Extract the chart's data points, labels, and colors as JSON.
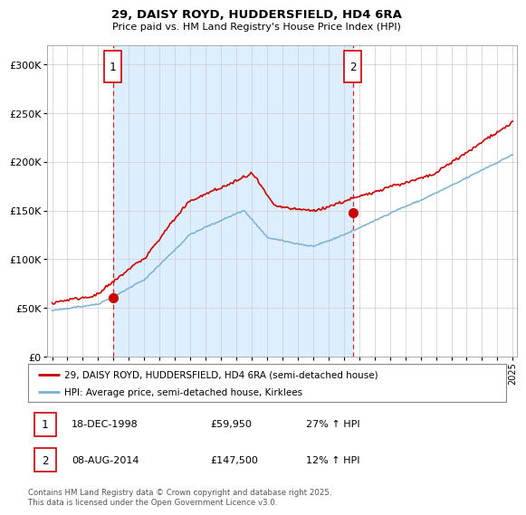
{
  "title1": "29, DAISY ROYD, HUDDERSFIELD, HD4 6RA",
  "title2": "Price paid vs. HM Land Registry's House Price Index (HPI)",
  "legend1": "29, DAISY ROYD, HUDDERSFIELD, HD4 6RA (semi-detached house)",
  "legend2": "HPI: Average price, semi-detached house, Kirklees",
  "annotation1_date": "18-DEC-1998",
  "annotation1_price": "£59,950",
  "annotation1_hpi": "27% ↑ HPI",
  "annotation2_date": "08-AUG-2014",
  "annotation2_price": "£147,500",
  "annotation2_hpi": "12% ↑ HPI",
  "footer": "Contains HM Land Registry data © Crown copyright and database right 2025.\nThis data is licensed under the Open Government Licence v3.0.",
  "price_color": "#cc0000",
  "hpi_color": "#7ab0d4",
  "shade_color": "#ddeeff",
  "marker_color": "#cc0000",
  "vline_color": "#cc0000",
  "ylim": [
    0,
    320000
  ],
  "ylabel_ticks": [
    0,
    50000,
    100000,
    150000,
    200000,
    250000,
    300000
  ],
  "ylabel_labels": [
    "£0",
    "£50K",
    "£100K",
    "£150K",
    "£200K",
    "£250K",
    "£300K"
  ],
  "background": "#ffffff",
  "grid_color": "#cccccc",
  "t1": 1998.96,
  "t2": 2014.58,
  "price1": 59950,
  "price2": 147500
}
